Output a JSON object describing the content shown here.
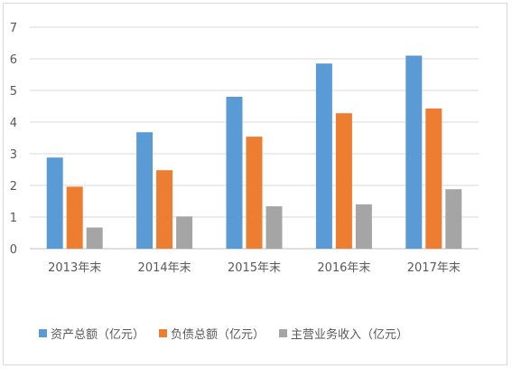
{
  "colors": {
    "series": [
      "#5b9bd5",
      "#ed7d31",
      "#a5a5a5"
    ],
    "grid": "#d9d9d9",
    "axis": "#bfbfbf",
    "text": "#595959"
  },
  "chart_data": {
    "type": "bar",
    "title": "",
    "xlabel": "",
    "ylabel": "",
    "ylim": [
      0,
      7
    ],
    "yticks": [
      0,
      1,
      2,
      3,
      4,
      5,
      6,
      7
    ],
    "grid": true,
    "legend_position": "bottom",
    "categories": [
      "2013年末",
      "2014年末",
      "2015年末",
      "2016年末",
      "2017年末"
    ],
    "series": [
      {
        "name": "资产总额（亿元）",
        "values": [
          2.88,
          3.68,
          4.8,
          5.85,
          6.1
        ]
      },
      {
        "name": "负债总额（亿元）",
        "values": [
          1.96,
          2.48,
          3.54,
          4.28,
          4.43
        ]
      },
      {
        "name": "主营业务收入（亿元）",
        "values": [
          0.67,
          1.02,
          1.34,
          1.4,
          1.88
        ]
      }
    ]
  }
}
